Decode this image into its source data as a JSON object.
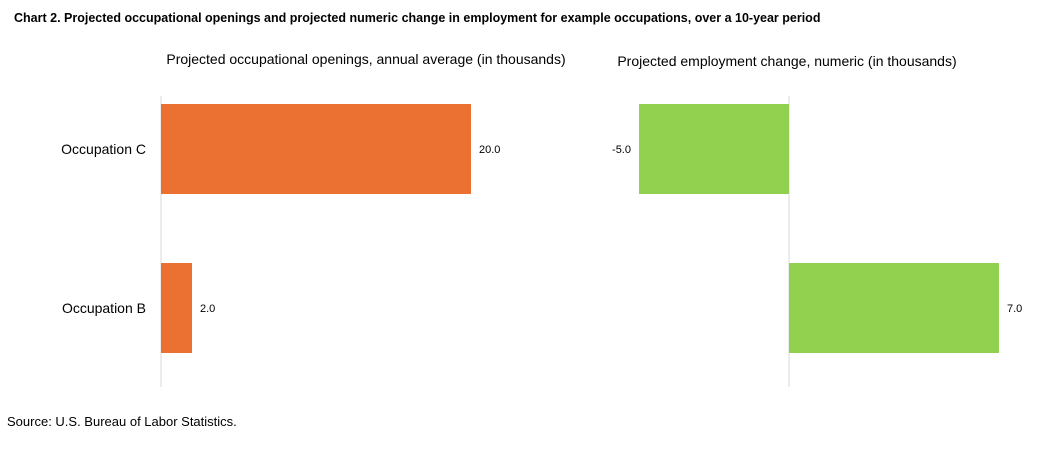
{
  "title": "Chart 2. Projected occupational openings and projected numeric change in employment for example occupations, over a 10-year period",
  "source": "Source: U.S. Bureau of Labor Statistics.",
  "colors": {
    "openings": "#ea7132",
    "change": "#92d050",
    "axis": "#d9d9d9"
  },
  "chart_data": [
    {
      "type": "bar",
      "orientation": "horizontal",
      "title": "Projected occupational openings, annual average (in thousands)",
      "categories": [
        "Occupation C",
        "Occupation B"
      ],
      "values": [
        20.0,
        2.0
      ],
      "labels": [
        "20.0",
        "2.0"
      ],
      "xlim": [
        0,
        20
      ],
      "grid": false,
      "legend": "none"
    },
    {
      "type": "bar",
      "orientation": "horizontal",
      "title": "Projected employment change, numeric (in thousands)",
      "categories": [
        "Occupation C",
        "Occupation B"
      ],
      "values": [
        -5.0,
        7.0
      ],
      "labels": [
        "-5.0",
        "7.0"
      ],
      "xlim": [
        -5,
        7
      ],
      "grid": false,
      "legend": "none"
    }
  ]
}
